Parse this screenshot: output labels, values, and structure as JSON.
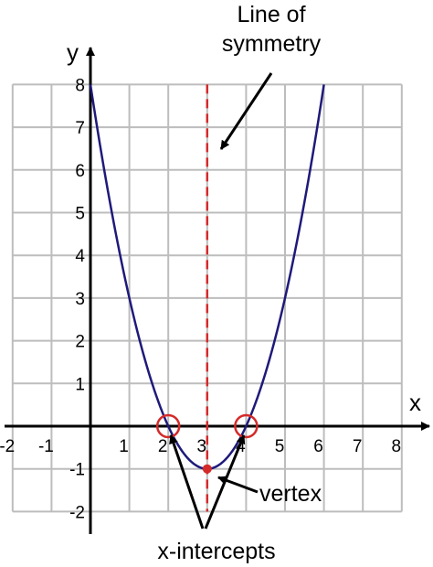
{
  "chart_data": {
    "type": "line",
    "title": "",
    "xlabel": "x",
    "ylabel": "y",
    "xlim": [
      -2,
      8
    ],
    "ylim": [
      -2,
      8
    ],
    "grid": true,
    "x_ticks": [
      "-2",
      "-1",
      "1",
      "2",
      "3",
      "4",
      "5",
      "6",
      "7",
      "8"
    ],
    "y_ticks": [
      "-2",
      "-1",
      "1",
      "2",
      "3",
      "4",
      "5",
      "6",
      "7",
      "8"
    ],
    "series": [
      {
        "color": "#1e1a7a",
        "x": [
          0,
          0.5,
          1,
          1.5,
          2,
          2.5,
          3,
          3.5,
          4,
          4.5,
          5,
          5.5,
          6
        ],
        "y": [
          8,
          5.25,
          3,
          1.25,
          0,
          -0.75,
          -1,
          -0.75,
          0,
          1.25,
          3,
          5.25,
          8
        ]
      }
    ],
    "symmetry_line": {
      "x": 3,
      "color": "#d42a2a"
    },
    "vertex": {
      "x": 3,
      "y": -1,
      "color": "#d42a2a"
    },
    "x_intercepts": [
      2,
      4
    ],
    "annotations": {
      "line_of_symmetry": [
        "Line of",
        "symmetry"
      ],
      "vertex": "vertex",
      "x_intercepts": "x-intercepts"
    }
  }
}
